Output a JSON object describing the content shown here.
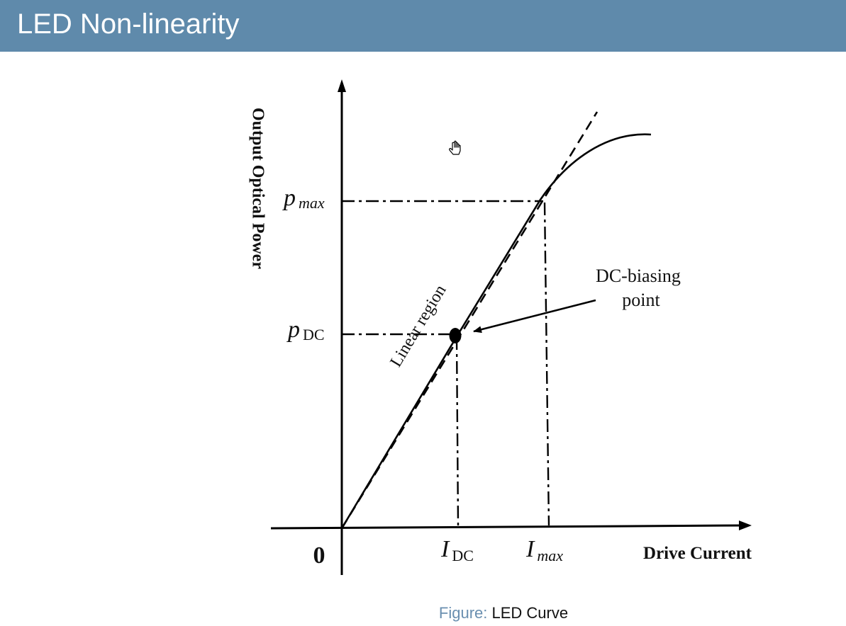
{
  "slide": {
    "title": "LED Non-linearity"
  },
  "diagram": {
    "y_axis_label": "Output Optical Power",
    "x_axis_label": "Drive Current",
    "origin_label": "0",
    "pmax_main": "p",
    "pmax_sub": "max",
    "pdc_main": "p",
    "pdc_sub": "DC",
    "idc_main": "I",
    "idc_sub": "DC",
    "imax_main": "I",
    "imax_sub": "max",
    "linear_region_label": "Linear region",
    "bias_label_line1": "DC-biasing",
    "bias_label_line2": "point",
    "cursor_icon": "hand-cursor-icon"
  },
  "caption": {
    "label": "Figure:",
    "text": "LED Curve"
  }
}
